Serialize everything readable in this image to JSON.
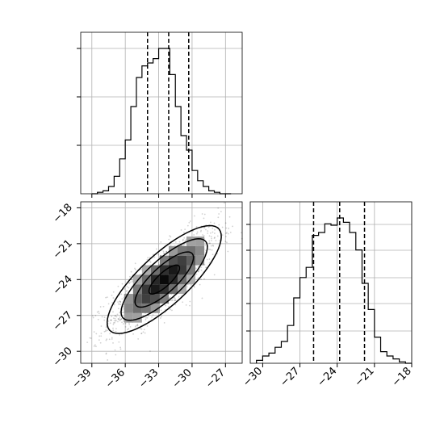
{
  "chart_data": [
    {
      "type": "histogram",
      "panel": "top-left",
      "parameter_index": 0,
      "xlim": [
        -40,
        -25.5
      ],
      "ylim": [
        0,
        1
      ],
      "grid": true,
      "bins_left_edges": [
        -39,
        -38.5,
        -38,
        -37.5,
        -37,
        -36.5,
        -36,
        -35.5,
        -35,
        -34.5,
        -34,
        -33.5,
        -33,
        -32.5,
        -32,
        -31.5,
        -31,
        -30.5,
        -30,
        -29.5,
        -29,
        -28.5,
        -28,
        -27.5,
        -27
      ],
      "bin_width": 0.5,
      "relative_counts": [
        0,
        0.01,
        0.02,
        0.05,
        0.12,
        0.24,
        0.37,
        0.6,
        0.8,
        0.88,
        0.9,
        0.93,
        1.0,
        1.0,
        0.82,
        0.6,
        0.4,
        0.3,
        0.16,
        0.09,
        0.05,
        0.02,
        0.01,
        0.0,
        0.0
      ],
      "quantile_lines": [
        -34.0,
        -32.1,
        -30.3
      ],
      "ytick_positions": [
        0.3,
        0.6,
        0.9
      ]
    },
    {
      "type": "2d-histogram-contour",
      "panel": "bottom-left",
      "xlim": [
        -40,
        -25.5
      ],
      "ylim": [
        -31,
        -17.5
      ],
      "grid": true,
      "xticks": [
        -39,
        -36,
        -33,
        -30,
        -27
      ],
      "xtick_labels": [
        "−39",
        "−36",
        "−33",
        "−30",
        "−27"
      ],
      "yticks": [
        -18,
        -21,
        -24,
        -27,
        -30
      ],
      "ytick_labels": [
        "−18",
        "−21",
        "−24",
        "−27",
        "−30"
      ],
      "center": [
        -32.5,
        -24
      ],
      "correlation": 0.8,
      "sigma_x": 2.5,
      "sigma_y": 2.2
    },
    {
      "type": "histogram",
      "panel": "bottom-right",
      "parameter_index": 1,
      "xlim": [
        -31,
        -18
      ],
      "ylim": [
        0,
        1
      ],
      "grid": true,
      "xticks": [
        -30,
        -27,
        -24,
        -21,
        -18
      ],
      "xtick_labels": [
        "−30",
        "−27",
        "−24",
        "−21",
        "−18"
      ],
      "bins_left_edges": [
        -30.5,
        -30,
        -29.5,
        -29,
        -28.5,
        -28,
        -27.5,
        -27,
        -26.5,
        -26,
        -25.5,
        -25,
        -24.5,
        -24,
        -23.5,
        -23,
        -22.5,
        -22,
        -21.5,
        -21,
        -20.5,
        -20,
        -19.5,
        -19,
        -18.5
      ],
      "bin_width": 0.5,
      "relative_counts": [
        0.02,
        0.05,
        0.07,
        0.11,
        0.15,
        0.26,
        0.45,
        0.59,
        0.66,
        0.88,
        0.9,
        0.96,
        0.95,
        1.0,
        0.97,
        0.9,
        0.78,
        0.55,
        0.37,
        0.18,
        0.08,
        0.05,
        0.03,
        0.01,
        0.0
      ],
      "quantile_lines": [
        -25.9,
        -23.8,
        -21.8
      ],
      "ytick_positions": [
        0.2,
        0.37,
        0.53,
        0.7,
        0.86
      ]
    }
  ]
}
